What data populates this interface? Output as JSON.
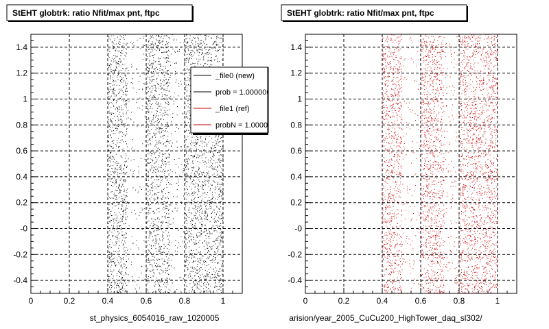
{
  "chart_data": [
    {
      "type": "scatter",
      "title": "StEHT globtrk: ratio Nfit/max pnt, ftpc",
      "xlabel": "st_physics_6054016_raw_1020005",
      "ylabel": "",
      "xlim": [
        0,
        1.1
      ],
      "ylim": [
        -0.5,
        1.5
      ],
      "xticks": [
        "0",
        "0.2",
        "0.4",
        "0.6",
        "0.8",
        "1"
      ],
      "yticks": [
        "-0.4",
        "-0.2",
        "-0",
        "0.2",
        "0.4",
        "0.6",
        "0.8",
        "1",
        "1.2",
        "1.4"
      ],
      "grid": true,
      "legend_position": "top-right",
      "color": "#000000",
      "series": [
        {
          "name": "_file0 (new)",
          "color": "#000000"
        },
        {
          "name": "prob = 1.000000",
          "color": "#000000"
        },
        {
          "name": "_file1 (ref)",
          "color": "#cc0000"
        },
        {
          "name": "probN = 1.000000",
          "color": "#cc0000"
        }
      ],
      "dense_bands_x": [
        [
          0.4,
          0.5
        ],
        [
          0.6,
          0.72
        ],
        [
          0.8,
          1.0
        ]
      ]
    },
    {
      "type": "scatter",
      "title": "StEHT globtrk: ratio Nfit/max pnt, ftpc",
      "xlabel": "arision/year_2005_CuCu200_HighTower_daq_sl302/",
      "ylabel": "",
      "xlim": [
        0,
        1.1
      ],
      "ylim": [
        -0.5,
        1.5
      ],
      "xticks": [
        "0",
        "0.2",
        "0.4",
        "0.6",
        "0.8",
        "1"
      ],
      "yticks": [
        "-0.4",
        "-0.2",
        "-0",
        "0.2",
        "0.4",
        "0.6",
        "0.8",
        "1",
        "1.2",
        "1.4"
      ],
      "grid": true,
      "color": "#cc0000",
      "dense_bands_x": [
        [
          0.4,
          0.5
        ],
        [
          0.6,
          0.72
        ],
        [
          0.8,
          1.0
        ]
      ]
    }
  ]
}
